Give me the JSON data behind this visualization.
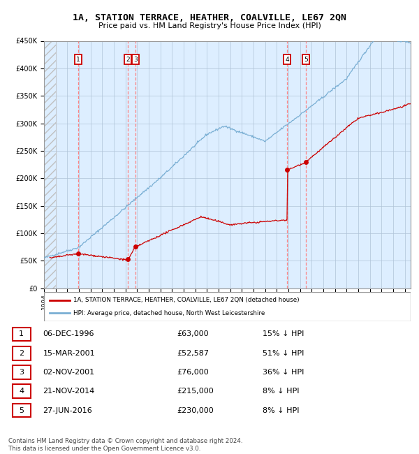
{
  "title": "1A, STATION TERRACE, HEATHER, COALVILLE, LE67 2QN",
  "subtitle": "Price paid vs. HM Land Registry's House Price Index (HPI)",
  "legend_label_red": "1A, STATION TERRACE, HEATHER, COALVILLE, LE67 2QN (detached house)",
  "legend_label_blue": "HPI: Average price, detached house, North West Leicestershire",
  "footer": "Contains HM Land Registry data © Crown copyright and database right 2024.\nThis data is licensed under the Open Government Licence v3.0.",
  "transactions": [
    {
      "num": 1,
      "date": "06-DEC-1996",
      "price": "£63,000",
      "hpi": "15% ↓ HPI",
      "year": 1996.92
    },
    {
      "num": 2,
      "date": "15-MAR-2001",
      "price": "£52,587",
      "hpi": "51% ↓ HPI",
      "year": 2001.21
    },
    {
      "num": 3,
      "date": "02-NOV-2001",
      "price": "£76,000",
      "hpi": "36% ↓ HPI",
      "year": 2001.84
    },
    {
      "num": 4,
      "date": "21-NOV-2014",
      "price": "£215,000",
      "hpi": "8% ↓ HPI",
      "year": 2014.89
    },
    {
      "num": 5,
      "date": "27-JUN-2016",
      "price": "£230,000",
      "hpi": "8% ↓ HPI",
      "year": 2016.49
    }
  ],
  "sale_prices": [
    63000,
    52587,
    76000,
    215000,
    230000
  ],
  "sale_years": [
    1996.92,
    2001.21,
    2001.84,
    2014.89,
    2016.49
  ],
  "hatch_end_year": 1995.0,
  "xmin": 1994,
  "xmax": 2025.5,
  "ymin": 0,
  "ymax": 450000,
  "yticks": [
    0,
    50000,
    100000,
    150000,
    200000,
    250000,
    300000,
    350000,
    400000,
    450000
  ],
  "ytick_labels": [
    "£0",
    "£50K",
    "£100K",
    "£150K",
    "£200K",
    "£250K",
    "£300K",
    "£350K",
    "£400K",
    "£450K"
  ],
  "red_color": "#cc0000",
  "blue_color": "#7aafd4",
  "bg_color": "#ddeeff",
  "grid_color": "#b0c4d8",
  "vline_color": "#ff7777"
}
